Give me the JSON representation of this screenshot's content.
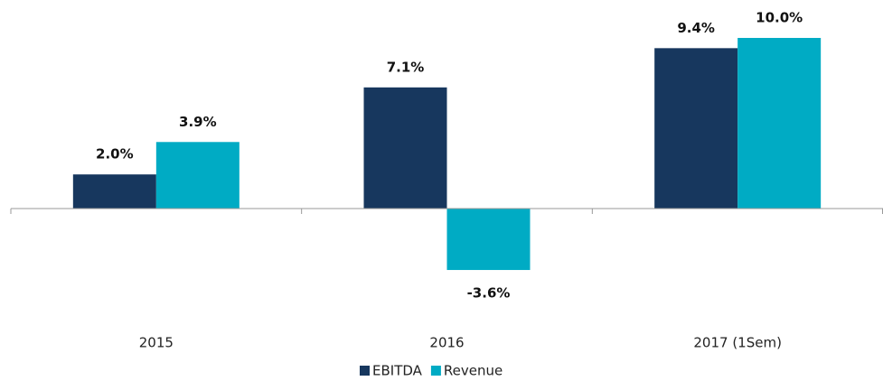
{
  "chart_data": {
    "type": "bar",
    "categories": [
      "2015",
      "2016",
      "2017 (1Sem)"
    ],
    "series": [
      {
        "name": "EBITDA",
        "color": "#17375e",
        "values": [
          2.0,
          7.1,
          9.4
        ],
        "value_labels": [
          "2.0%",
          "7.1%",
          "9.4%"
        ]
      },
      {
        "name": "Revenue",
        "color": "#00abc4",
        "values": [
          3.9,
          -3.6,
          10.0
        ],
        "value_labels": [
          "3.9%",
          "-3.6%",
          "10.0%"
        ]
      }
    ],
    "ylim": [
      -6,
      12
    ],
    "legend": "bottom"
  }
}
